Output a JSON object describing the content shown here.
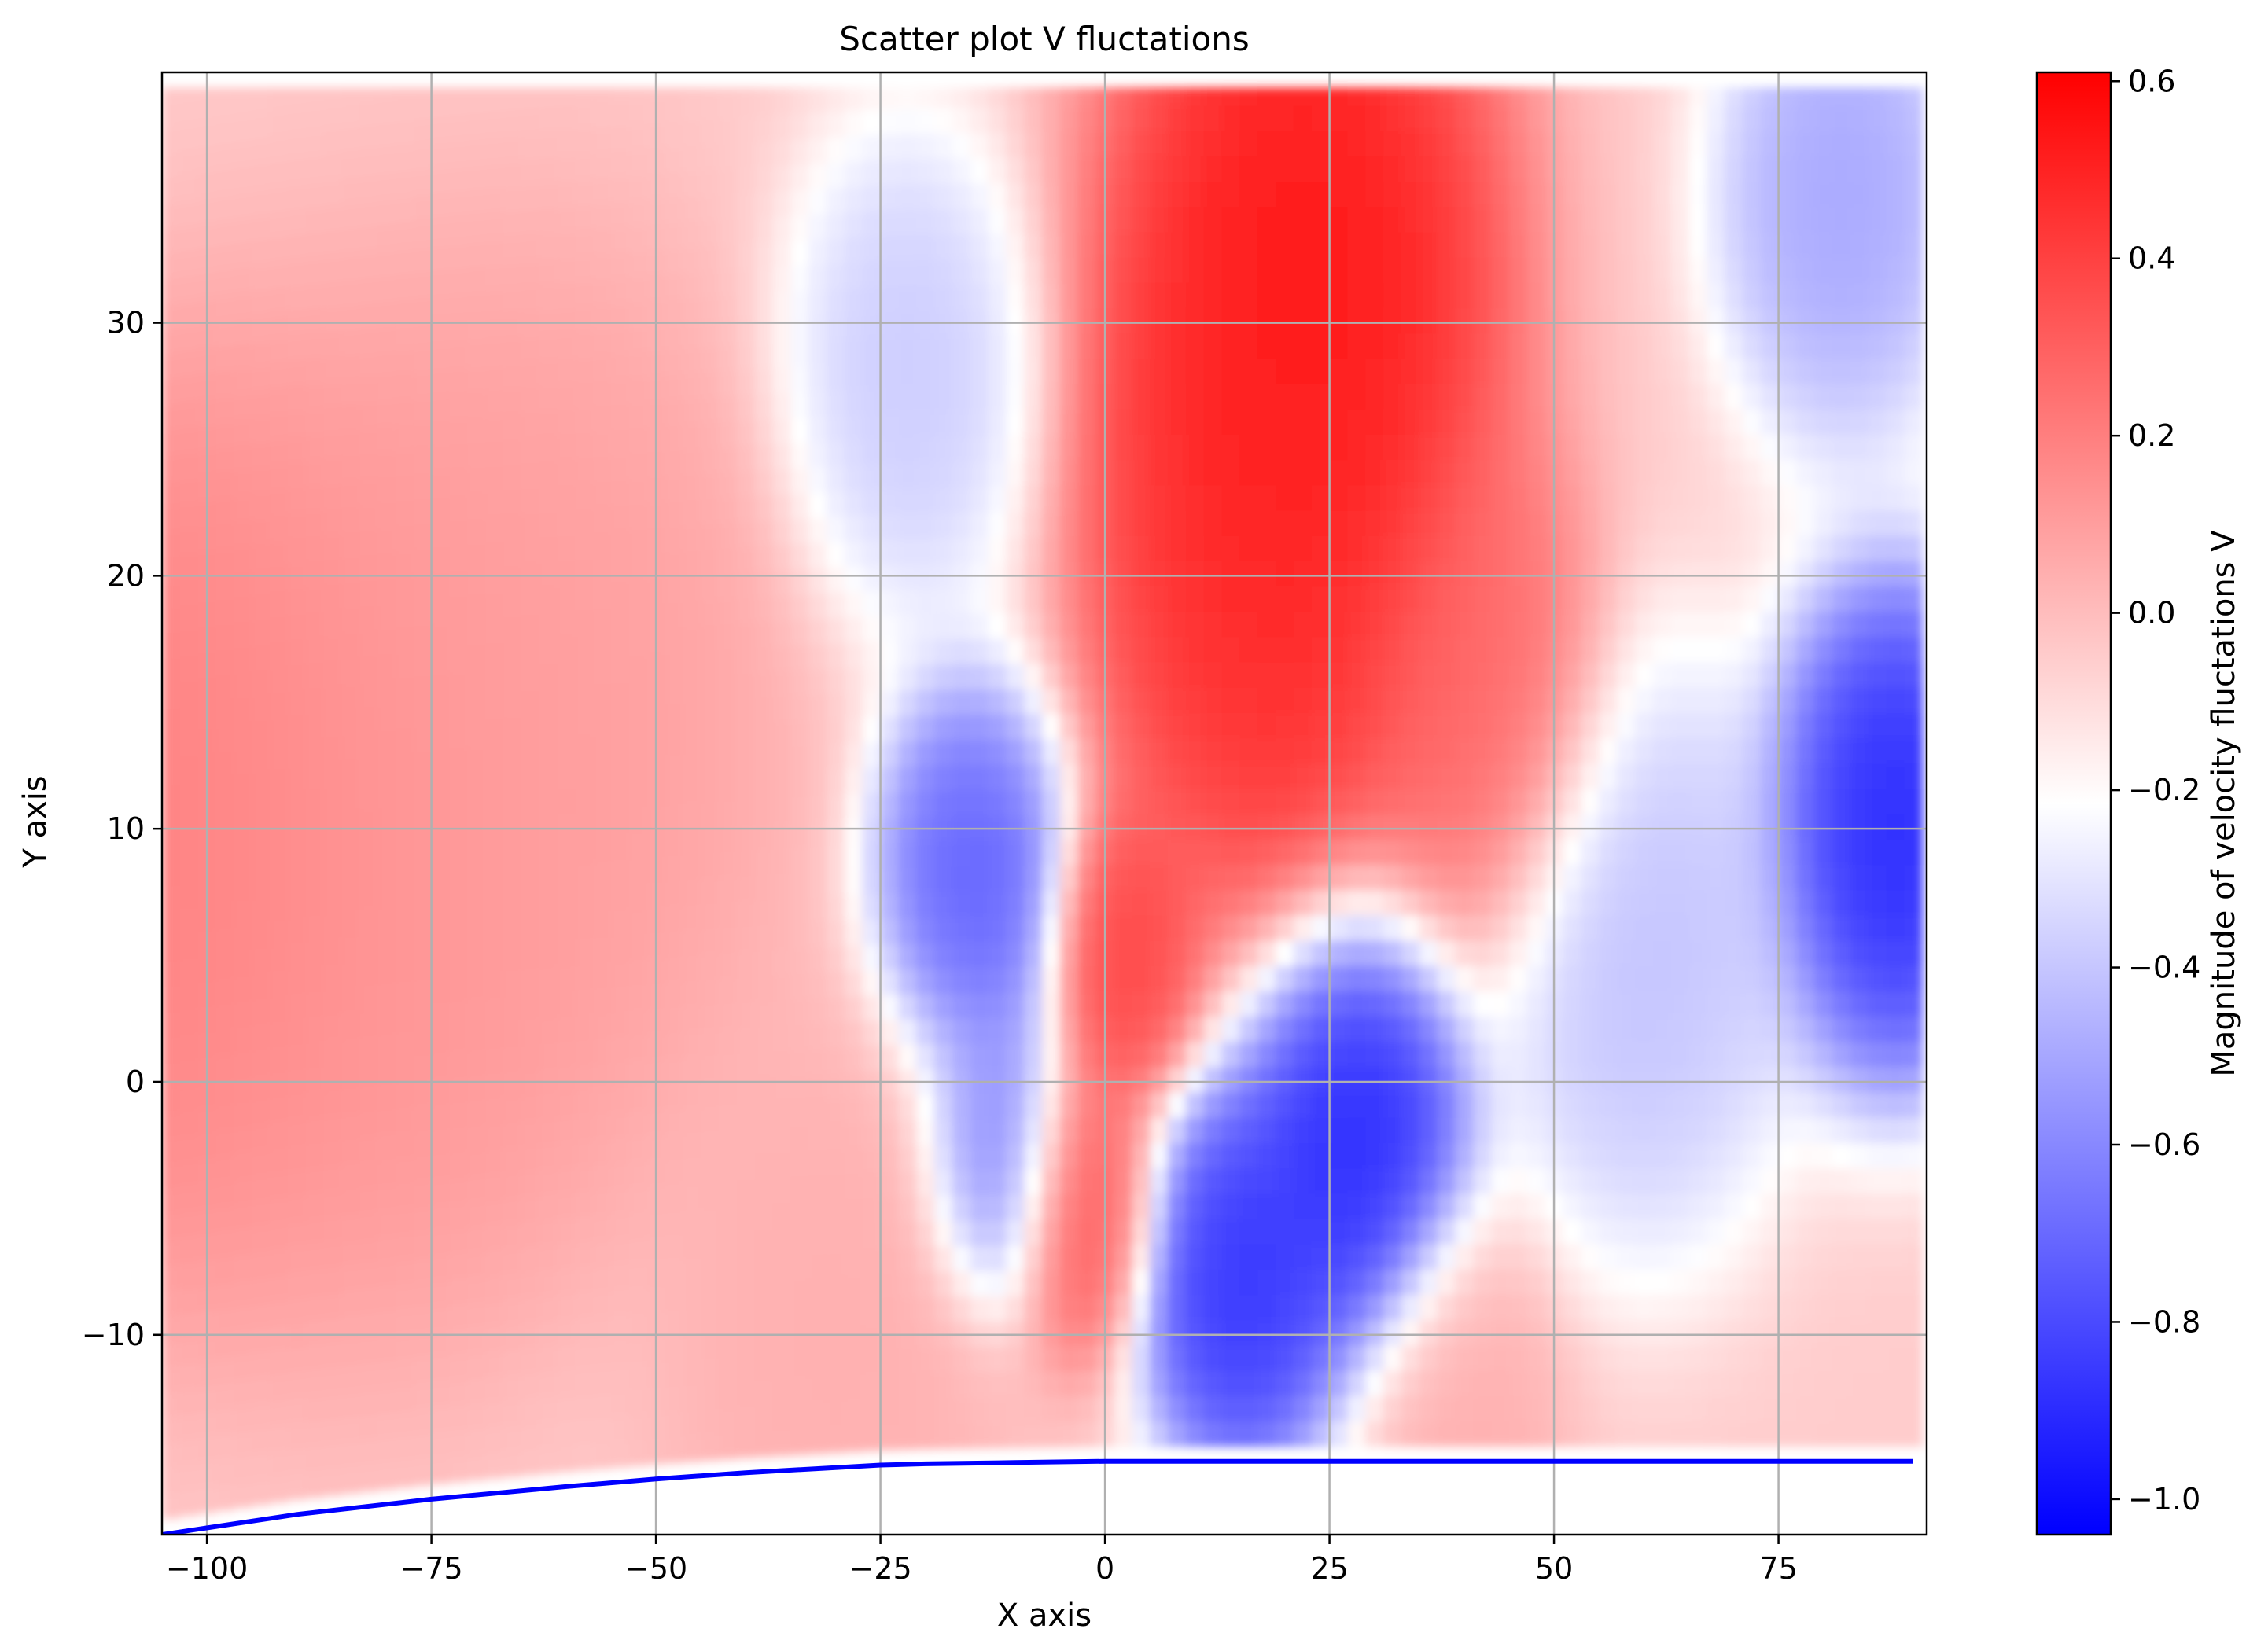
{
  "chart_data": {
    "type": "scatter",
    "title": "Scatter plot V fluctations",
    "xlabel": "X axis",
    "ylabel": "Y axis",
    "xlim": [
      -105,
      91.5
    ],
    "ylim": [
      -17.9,
      39.9
    ],
    "xticks": [
      -100,
      -75,
      -50,
      -25,
      0,
      25,
      50,
      75
    ],
    "xtick_labels": [
      "−100",
      "−75",
      "−50",
      "−25",
      "0",
      "25",
      "50",
      "75"
    ],
    "yticks": [
      -10,
      0,
      10,
      20,
      30
    ],
    "ytick_labels": [
      "−10",
      "0",
      "10",
      "20",
      "30"
    ],
    "grid": true,
    "colormap": "bwr",
    "colorbar": {
      "label": "Magnitude of velocity fluctations V",
      "range": [
        -1.04,
        0.61
      ],
      "ticks": [
        -1.0,
        -0.8,
        -0.6,
        -0.4,
        -0.2,
        0.0,
        0.2,
        0.4,
        0.6
      ],
      "tick_labels": [
        "−1.0",
        "−0.8",
        "−0.6",
        "−0.4",
        "−0.2",
        "0.0",
        "0.2",
        "0.4",
        "0.6"
      ]
    },
    "field_extent": {
      "x": [
        -105,
        91
      ],
      "y_top": 39.3
    },
    "field_features": [
      {
        "x": -105,
        "y": 10,
        "v": 0.22,
        "spread": 18
      },
      {
        "x": -80,
        "y": 10,
        "v": 0.15,
        "spread": 20
      },
      {
        "x": -60,
        "y": 15,
        "v": 0.1,
        "spread": 18
      },
      {
        "x": -30,
        "y": -10,
        "v": 0.05,
        "spread": 14
      },
      {
        "x": -22,
        "y": 28,
        "v": -0.42,
        "spread": 10
      },
      {
        "x": -15,
        "y": 8,
        "v": -0.8,
        "spread": 8
      },
      {
        "x": -12,
        "y": -3,
        "v": -0.7,
        "spread": 6
      },
      {
        "x": -3,
        "y": -5,
        "v": 0.35,
        "spread": 6
      },
      {
        "x": 2,
        "y": 5,
        "v": 0.42,
        "spread": 6
      },
      {
        "x": 22,
        "y": 32,
        "v": 0.6,
        "spread": 16
      },
      {
        "x": 18,
        "y": 20,
        "v": 0.52,
        "spread": 14
      },
      {
        "x": 42,
        "y": 15,
        "v": 0.3,
        "spread": 10
      },
      {
        "x": 28,
        "y": -2,
        "v": -1.0,
        "spread": 9
      },
      {
        "x": 15,
        "y": -8,
        "v": -0.95,
        "spread": 8
      },
      {
        "x": 60,
        "y": 5,
        "v": -0.45,
        "spread": 12
      },
      {
        "x": 88,
        "y": 10,
        "v": -1.0,
        "spread": 10
      },
      {
        "x": 82,
        "y": 35,
        "v": -0.55,
        "spread": 10
      },
      {
        "x": 40,
        "y": -13,
        "v": 0.05,
        "spread": 8
      }
    ],
    "wall_line": {
      "color": "#0000ff",
      "x": [
        -105,
        -90,
        -75,
        -60,
        -50,
        -40,
        -30,
        -25,
        -20,
        -10,
        0,
        25,
        50,
        75,
        90
      ],
      "y": [
        -17.9,
        -17.1,
        -16.5,
        -16.0,
        -15.7,
        -15.45,
        -15.25,
        -15.15,
        -15.1,
        -15.05,
        -15.0,
        -15.0,
        -15.0,
        -15.0,
        -15.0
      ]
    }
  }
}
